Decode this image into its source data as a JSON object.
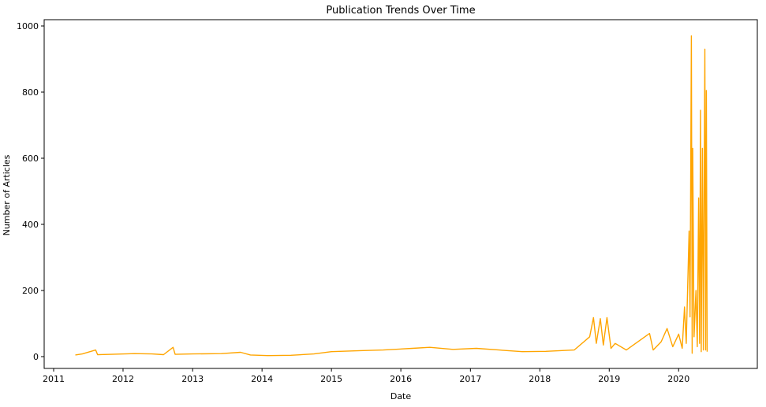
{
  "chart_data": {
    "type": "line",
    "title": "Publication Trends Over Time",
    "xlabel": "Date",
    "ylabel": "Number of Articles",
    "xlim": [
      "2011-01-01",
      "2020-12-01"
    ],
    "ylim": [
      0,
      1000
    ],
    "x_ticks": [
      "2011",
      "2012",
      "2013",
      "2014",
      "2015",
      "2016",
      "2017",
      "2018",
      "2019",
      "2020"
    ],
    "y_ticks": [
      0,
      200,
      400,
      600,
      800,
      1000
    ],
    "grid": false,
    "legend": "none",
    "series": [
      {
        "color": "#FFA500",
        "points": [
          [
            "2011-04-25",
            5
          ],
          [
            "2011-06-01",
            8
          ],
          [
            "2011-08-10",
            20
          ],
          [
            "2011-08-20",
            6
          ],
          [
            "2011-11-01",
            7
          ],
          [
            "2012-03-01",
            9
          ],
          [
            "2012-06-01",
            8
          ],
          [
            "2012-08-01",
            6
          ],
          [
            "2012-09-20",
            28
          ],
          [
            "2012-10-01",
            7
          ],
          [
            "2013-01-01",
            8
          ],
          [
            "2013-06-01",
            9
          ],
          [
            "2013-09-10",
            13
          ],
          [
            "2013-11-01",
            5
          ],
          [
            "2014-02-01",
            3
          ],
          [
            "2014-06-01",
            4
          ],
          [
            "2014-10-01",
            8
          ],
          [
            "2015-01-01",
            15
          ],
          [
            "2015-06-01",
            18
          ],
          [
            "2015-10-01",
            20
          ],
          [
            "2016-03-01",
            25
          ],
          [
            "2016-06-01",
            28
          ],
          [
            "2016-10-01",
            22
          ],
          [
            "2017-02-01",
            25
          ],
          [
            "2017-06-01",
            20
          ],
          [
            "2017-10-01",
            15
          ],
          [
            "2018-02-01",
            16
          ],
          [
            "2018-07-01",
            20
          ],
          [
            "2018-09-20",
            60
          ],
          [
            "2018-10-10",
            118
          ],
          [
            "2018-10-25",
            40
          ],
          [
            "2018-11-15",
            115
          ],
          [
            "2018-12-01",
            35
          ],
          [
            "2018-12-20",
            118
          ],
          [
            "2019-01-10",
            25
          ],
          [
            "2019-02-01",
            40
          ],
          [
            "2019-04-01",
            20
          ],
          [
            "2019-08-01",
            70
          ],
          [
            "2019-08-20",
            20
          ],
          [
            "2019-10-01",
            45
          ],
          [
            "2019-11-01",
            85
          ],
          [
            "2019-12-01",
            30
          ],
          [
            "2020-01-01",
            68
          ],
          [
            "2020-01-20",
            25
          ],
          [
            "2020-02-01",
            150
          ],
          [
            "2020-02-10",
            40
          ],
          [
            "2020-02-25",
            380
          ],
          [
            "2020-03-01",
            120
          ],
          [
            "2020-03-08",
            970
          ],
          [
            "2020-03-12",
            10
          ],
          [
            "2020-03-15",
            630
          ],
          [
            "2020-03-22",
            60
          ],
          [
            "2020-04-01",
            200
          ],
          [
            "2020-04-08",
            30
          ],
          [
            "2020-04-15",
            480
          ],
          [
            "2020-04-20",
            40
          ],
          [
            "2020-04-25",
            745
          ],
          [
            "2020-04-29",
            15
          ],
          [
            "2020-05-05",
            630
          ],
          [
            "2020-05-10",
            20
          ],
          [
            "2020-05-18",
            930
          ],
          [
            "2020-05-22",
            20
          ],
          [
            "2020-05-26",
            805
          ],
          [
            "2020-05-30",
            15
          ]
        ]
      }
    ]
  }
}
